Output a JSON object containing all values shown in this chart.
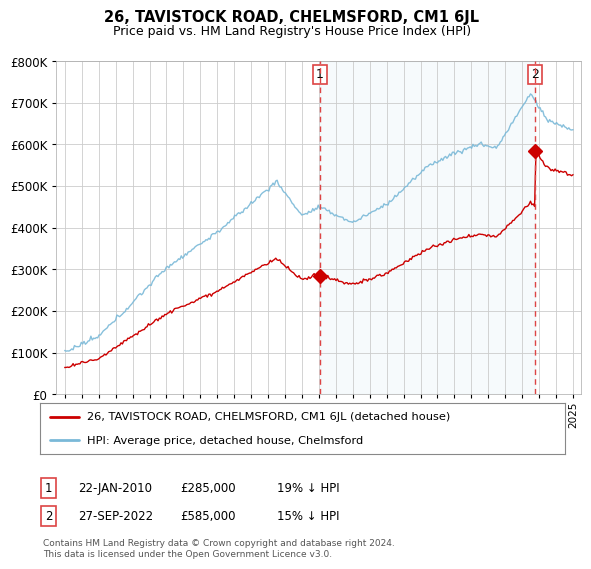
{
  "title": "26, TAVISTOCK ROAD, CHELMSFORD, CM1 6JL",
  "subtitle": "Price paid vs. HM Land Registry's House Price Index (HPI)",
  "bg_color": "#ffffff",
  "plot_bg_color": "#ffffff",
  "grid_color": "#cccccc",
  "hpi_color": "#7ab9d8",
  "hpi_fill_color": "#ddeef7",
  "price_color": "#cc0000",
  "vline_color": "#dd4444",
  "sale1_date_x": 2010.06,
  "sale1_price": 285000,
  "sale2_date_x": 2022.75,
  "sale2_price": 585000,
  "ylim_min": 0,
  "ylim_max": 800000,
  "yticks": [
    0,
    100000,
    200000,
    300000,
    400000,
    500000,
    600000,
    700000,
    800000
  ],
  "ytick_labels": [
    "£0",
    "£100K",
    "£200K",
    "£300K",
    "£400K",
    "£500K",
    "£600K",
    "£700K",
    "£800K"
  ],
  "legend_label_price": "26, TAVISTOCK ROAD, CHELMSFORD, CM1 6JL (detached house)",
  "legend_label_hpi": "HPI: Average price, detached house, Chelmsford",
  "annotation1_text1": "22-JAN-2010",
  "annotation1_text2": "£285,000",
  "annotation1_text3": "19% ↓ HPI",
  "annotation2_text1": "27-SEP-2022",
  "annotation2_text2": "£585,000",
  "annotation2_text3": "15% ↓ HPI",
  "footer": "Contains HM Land Registry data © Crown copyright and database right 2024.\nThis data is licensed under the Open Government Licence v3.0.",
  "xlim_min": 1994.5,
  "xlim_max": 2025.5
}
